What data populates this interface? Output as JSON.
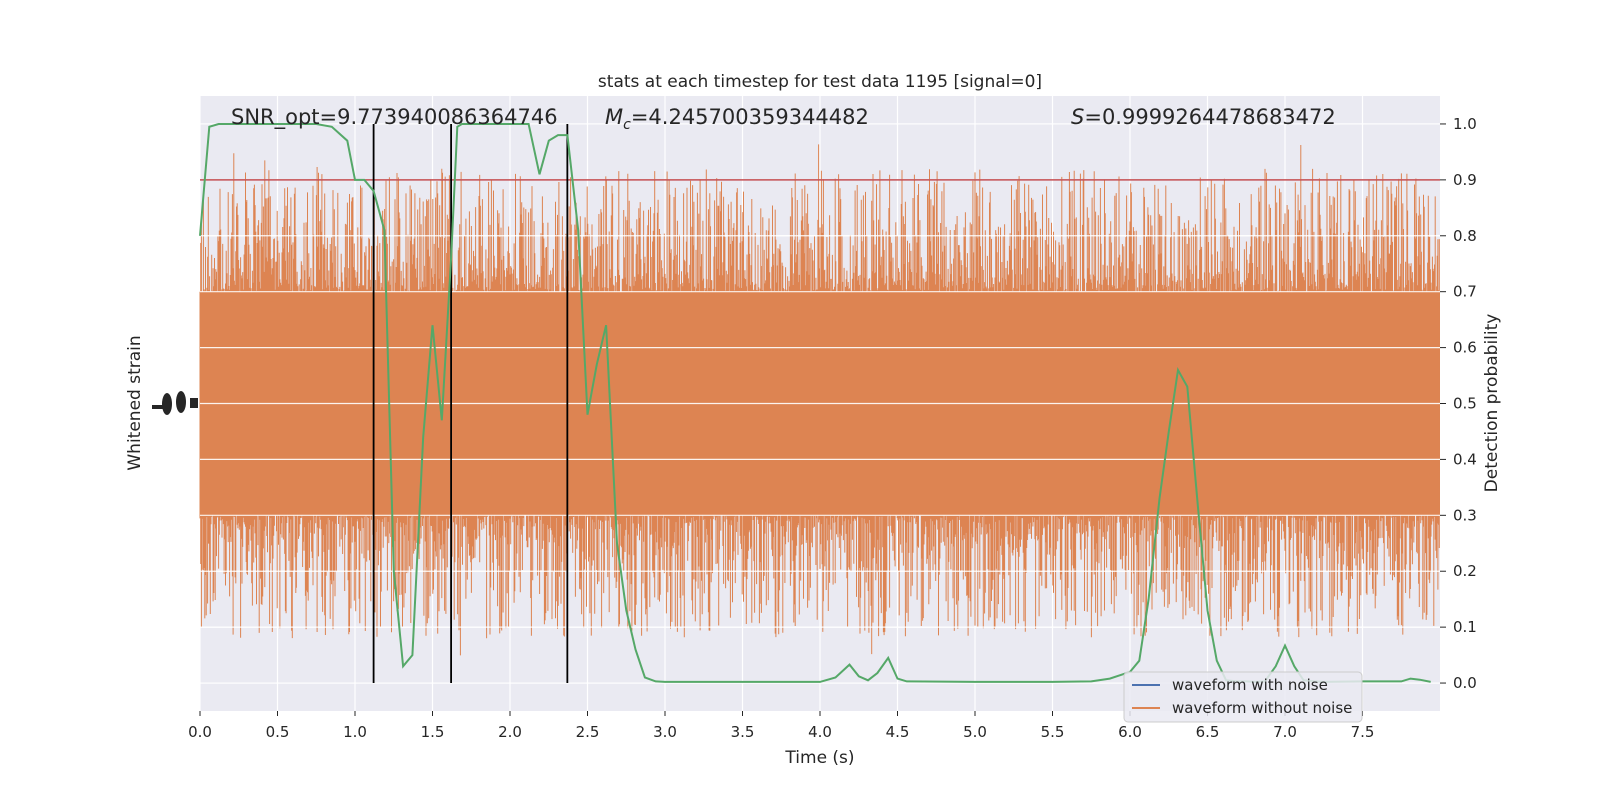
{
  "chart_data": {
    "type": "line",
    "title": "stats at each timestep for test data 1195 [signal=0]",
    "xlabel": "Time (s)",
    "ylabel_left": "Whitened strain",
    "ylabel_right": "Detection probability",
    "xlim": [
      0,
      8
    ],
    "ylim_right": [
      -0.05,
      1.05
    ],
    "x_ticks": [
      "0.0",
      "0.5",
      "1.0",
      "1.5",
      "2.0",
      "2.5",
      "3.0",
      "3.5",
      "4.0",
      "4.5",
      "5.0",
      "5.5",
      "6.0",
      "6.5",
      "7.0",
      "7.5"
    ],
    "x_tick_values": [
      0,
      0.5,
      1,
      1.5,
      2,
      2.5,
      3,
      3.5,
      4,
      4.5,
      5,
      5.5,
      6,
      6.5,
      7,
      7.5
    ],
    "y_right_ticks": [
      "0.0",
      "0.1",
      "0.2",
      "0.3",
      "0.4",
      "0.5",
      "0.6",
      "0.7",
      "0.8",
      "0.9",
      "1.0"
    ],
    "y_right_tick_values": [
      0,
      0.1,
      0.2,
      0.3,
      0.4,
      0.5,
      0.6,
      0.7,
      0.8,
      0.9,
      1.0
    ],
    "annotations": {
      "snr": "SNR_opt=9.773940086364746",
      "mc": "=4.245700359344482",
      "mc_symbol": "M",
      "mc_subscript": "c",
      "s": "=0.9999264478683472",
      "s_symbol": "S"
    },
    "threshold": {
      "value": 0.9,
      "color": "#c44e52"
    },
    "vertical_markers": [
      1.12,
      1.62,
      2.37
    ],
    "legend": {
      "placement": "lower-right",
      "entries": [
        {
          "label": "waveform with noise",
          "color": "#4c72b0"
        },
        {
          "label": "waveform without noise",
          "color": "#dd8452"
        }
      ]
    },
    "strain": {
      "name": "waveform without noise",
      "color": "#dd8452",
      "note": "dense noise trace, drawn procedurally",
      "fill_range": [
        0.3,
        0.7
      ],
      "envelope_range": [
        0.0,
        1.0
      ]
    },
    "series": [
      {
        "name": "detection probability",
        "color": "#55a868",
        "x": [
          0.0,
          0.06,
          0.12,
          0.25,
          0.5,
          0.75,
          0.85,
          0.95,
          1.0,
          1.06,
          1.12,
          1.19,
          1.25,
          1.31,
          1.37,
          1.44,
          1.5,
          1.56,
          1.62,
          1.66,
          1.69,
          1.75,
          1.81,
          1.87,
          2.0,
          2.12,
          2.19,
          2.25,
          2.31,
          2.37,
          2.44,
          2.5,
          2.56,
          2.62,
          2.69,
          2.75,
          2.81,
          2.87,
          2.94,
          3.0,
          3.5,
          4.0,
          4.1,
          4.19,
          4.25,
          4.31,
          4.37,
          4.44,
          4.5,
          4.56,
          5.0,
          5.5,
          5.75,
          5.87,
          6.0,
          6.06,
          6.12,
          6.19,
          6.25,
          6.31,
          6.37,
          6.44,
          6.5,
          6.56,
          6.62,
          6.69,
          6.75,
          6.81,
          6.87,
          6.94,
          7.0,
          7.06,
          7.12,
          7.19,
          7.25,
          7.5,
          7.75,
          7.81,
          7.87,
          7.94
        ],
        "values": [
          0.8,
          0.995,
          1.0,
          1.0,
          1.0,
          1.0,
          0.995,
          0.97,
          0.9,
          0.9,
          0.88,
          0.81,
          0.2,
          0.03,
          0.05,
          0.44,
          0.64,
          0.47,
          0.76,
          0.995,
          1.0,
          1.0,
          1.0,
          1.0,
          1.0,
          1.0,
          0.91,
          0.97,
          0.98,
          0.98,
          0.81,
          0.48,
          0.57,
          0.64,
          0.25,
          0.13,
          0.06,
          0.01,
          0.003,
          0.002,
          0.002,
          0.002,
          0.01,
          0.033,
          0.012,
          0.005,
          0.018,
          0.045,
          0.008,
          0.003,
          0.002,
          0.002,
          0.003,
          0.008,
          0.02,
          0.04,
          0.15,
          0.33,
          0.45,
          0.56,
          0.53,
          0.31,
          0.13,
          0.04,
          0.005,
          0.003,
          0.003,
          0.002,
          0.003,
          0.03,
          0.067,
          0.03,
          0.005,
          0.003,
          0.002,
          0.003,
          0.003,
          0.008,
          0.006,
          0.002
        ]
      }
    ]
  }
}
